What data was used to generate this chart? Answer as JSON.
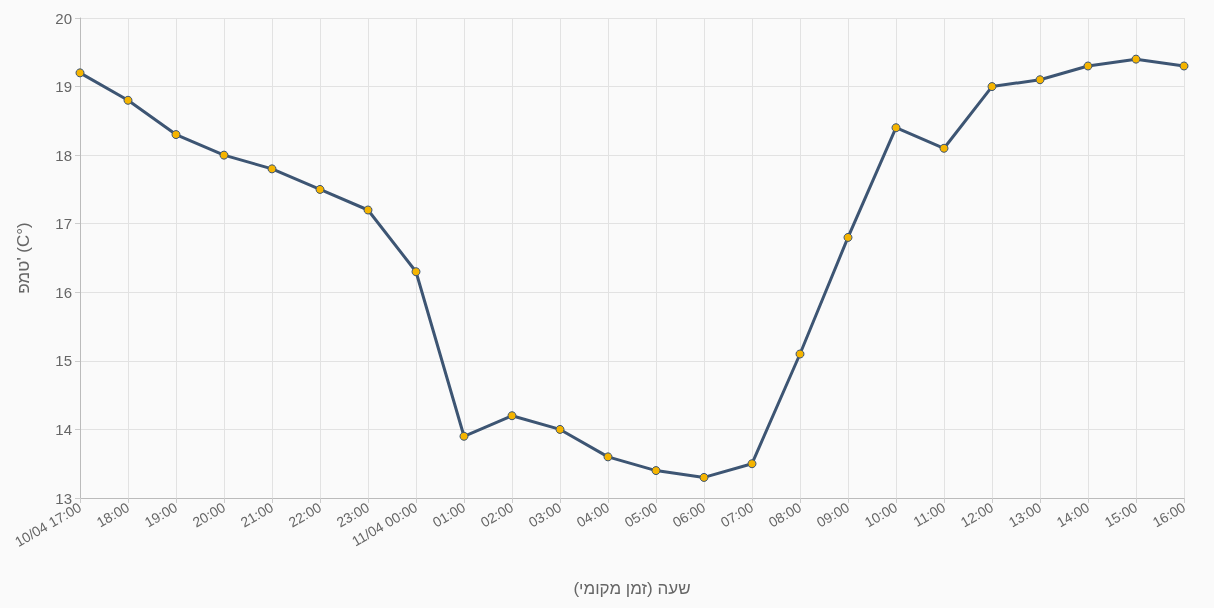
{
  "chart_data": {
    "type": "line",
    "xlabel": "שעה (זמן מקומי)",
    "ylabel": "טמפ' (C°)",
    "categories": [
      "10/04 17:00",
      "18:00",
      "19:00",
      "20:00",
      "21:00",
      "22:00",
      "23:00",
      "11/04 00:00",
      "01:00",
      "02:00",
      "03:00",
      "04:00",
      "05:00",
      "06:00",
      "07:00",
      "08:00",
      "09:00",
      "10:00",
      "11:00",
      "12:00",
      "13:00",
      "14:00",
      "15:00",
      "16:00"
    ],
    "series": [
      {
        "color": "#3d5573",
        "values": [
          19.2,
          18.8,
          18.3,
          18.0,
          17.8,
          17.5,
          17.2,
          16.3,
          13.9,
          14.2,
          14.0,
          13.6,
          13.4,
          13.3,
          13.5,
          15.1,
          16.8,
          18.4,
          18.1,
          19.0,
          19.1,
          19.3,
          19.4,
          19.3
        ]
      }
    ],
    "ylim": [
      13,
      20
    ],
    "yticks": [
      13,
      14,
      15,
      16,
      17,
      18,
      19,
      20
    ],
    "grid": true,
    "marker": "circle",
    "line_style": "solid"
  }
}
